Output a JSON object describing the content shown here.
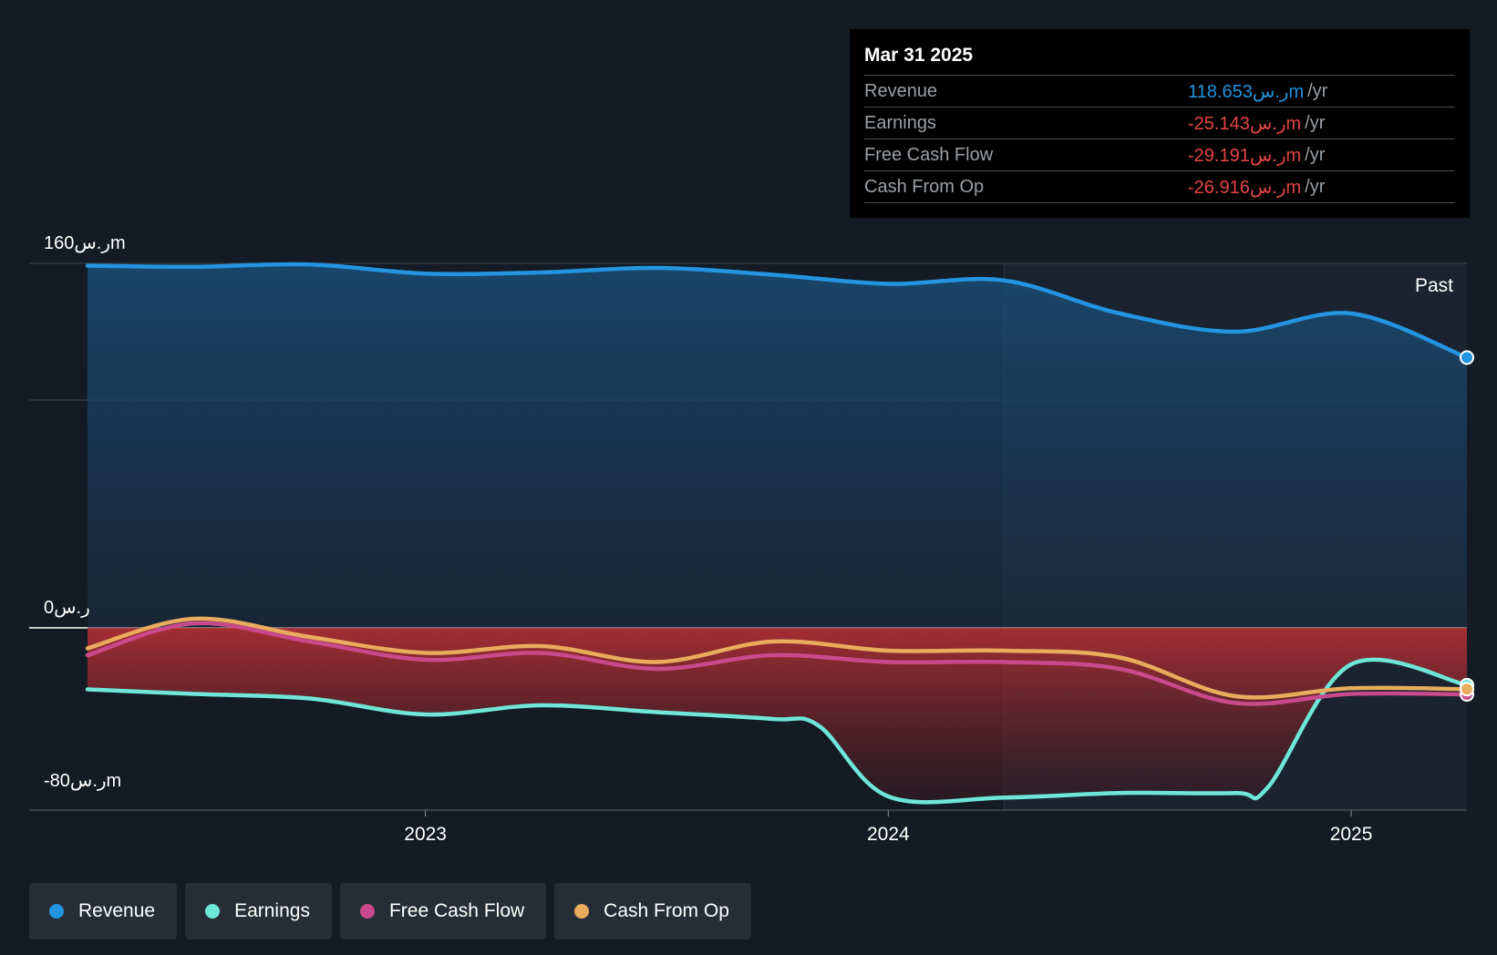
{
  "tooltip": {
    "date": "Mar 31 2025",
    "rows": [
      {
        "label": "Revenue",
        "value": "118.653ر.سm",
        "unit": "/yr",
        "color": "#2394df"
      },
      {
        "label": "Earnings",
        "value": "-25.143ر.سm",
        "unit": "/yr",
        "color": "#e64545"
      },
      {
        "label": "Free Cash Flow",
        "value": "-29.191ر.سm",
        "unit": "/yr",
        "color": "#e64545"
      },
      {
        "label": "Cash From Op",
        "value": "-26.916ر.سm",
        "unit": "/yr",
        "color": "#e64545"
      }
    ]
  },
  "past_label": "Past",
  "legend": [
    {
      "label": "Revenue",
      "color": "#2394df"
    },
    {
      "label": "Earnings",
      "color": "#6ee7d8"
    },
    {
      "label": "Free Cash Flow",
      "color": "#c94a8c"
    },
    {
      "label": "Cash From Op",
      "color": "#e8ac5c"
    }
  ],
  "chart_data": {
    "type": "line",
    "y_tick_labels": [
      "160ر.سm",
      "0ر.س",
      "-80ر.سm"
    ],
    "x_tick_labels": [
      "2023",
      "2024",
      "2025"
    ],
    "ylim": [
      -80,
      160
    ],
    "xlim": [
      2022.27,
      2025.25
    ],
    "x_ticks": [
      2023,
      2024,
      2025
    ],
    "y_ticks": [
      160,
      100,
      0,
      -80
    ],
    "past_boundary_x": 2024.25,
    "grid": true,
    "legend_position": "bottom",
    "series": [
      {
        "name": "Revenue",
        "color": "#2394df",
        "x": [
          2022.27,
          2022.5,
          2022.75,
          2023.0,
          2023.25,
          2023.5,
          2023.75,
          2024.0,
          2024.25,
          2024.5,
          2024.75,
          2025.0,
          2025.25
        ],
        "y": [
          159,
          158.5,
          159.5,
          155.5,
          156,
          158,
          155,
          151,
          152.5,
          138,
          130,
          138,
          118.653
        ]
      },
      {
        "name": "Earnings",
        "color": "#6ee7d8",
        "x": [
          2022.27,
          2022.5,
          2022.75,
          2023.0,
          2023.25,
          2023.5,
          2023.75,
          2023.85,
          2024.0,
          2024.25,
          2024.5,
          2024.75,
          2024.82,
          2025.0,
          2025.25
        ],
        "y": [
          -27,
          -29,
          -31,
          -38,
          -34,
          -37,
          -40,
          -43,
          -74,
          -74.5,
          -72.5,
          -72.5,
          -70,
          -16,
          -25.143
        ]
      },
      {
        "name": "Free Cash Flow",
        "color": "#c94a8c",
        "x": [
          2022.27,
          2022.5,
          2022.75,
          2023.0,
          2023.25,
          2023.5,
          2023.75,
          2024.0,
          2024.25,
          2024.5,
          2024.75,
          2025.0,
          2025.25
        ],
        "y": [
          -12,
          2,
          -6,
          -14,
          -11,
          -18,
          -12,
          -15,
          -15,
          -18,
          -33,
          -29,
          -29.191
        ]
      },
      {
        "name": "Cash From Op",
        "color": "#e8ac5c",
        "x": [
          2022.27,
          2022.5,
          2022.75,
          2023.0,
          2023.25,
          2023.5,
          2023.75,
          2024.0,
          2024.25,
          2024.5,
          2024.75,
          2025.0,
          2025.25
        ],
        "y": [
          -9,
          4,
          -4,
          -11,
          -8,
          -15,
          -6,
          -10,
          -10,
          -13,
          -30,
          -26.5,
          -26.916
        ]
      }
    ]
  }
}
